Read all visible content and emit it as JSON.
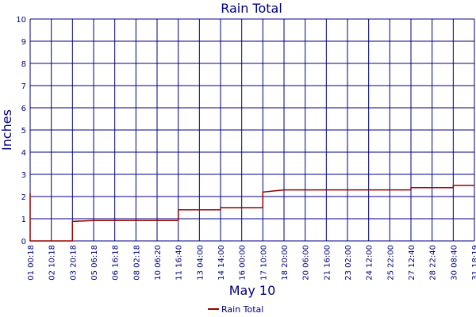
{
  "chart_data": {
    "type": "line",
    "title": "Rain Total",
    "xlabel": "May 10",
    "ylabel": "Inches",
    "ylim": [
      0,
      10
    ],
    "y_ticks": [
      "0",
      "1",
      "2",
      "3",
      "4",
      "5",
      "6",
      "7",
      "8",
      "9",
      "10"
    ],
    "x_ticks": [
      "01 00:18",
      "02 10:18",
      "03 20:18",
      "05 06:18",
      "06 16:18",
      "08 02:18",
      "10 06:20",
      "11 16:40",
      "13 04:00",
      "14 14:00",
      "16 00:00",
      "17 10:00",
      "18 20:00",
      "20 06:00",
      "21 16:00",
      "23 02:00",
      "24 12:00",
      "25 22:00",
      "27 12:40",
      "28 22:40",
      "30 08:40",
      "31 18:19"
    ],
    "grid": true,
    "legend": "bottom",
    "colors": {
      "series": "#990000",
      "grid": "#000080",
      "text": "#000080"
    },
    "series": [
      {
        "name": "Rain Total",
        "points": [
          [
            "01 00:18",
            2.15
          ],
          [
            "01 00:18",
            0.0
          ],
          [
            "02 10:18",
            0.0
          ],
          [
            "03 20:18",
            0.0
          ],
          [
            "03 20:18",
            0.8
          ],
          [
            "03 20:18",
            0.88
          ],
          [
            "05 06:18",
            0.92
          ],
          [
            "10 06:20",
            0.92
          ],
          [
            "11 16:40",
            0.92
          ],
          [
            "11 16:40",
            1.1
          ],
          [
            "11 16:40",
            1.4
          ],
          [
            "14 14:00",
            1.4
          ],
          [
            "14 14:00",
            1.5
          ],
          [
            "17 10:00",
            1.5
          ],
          [
            "17 10:00",
            1.7
          ],
          [
            "17 10:00",
            2.2
          ],
          [
            "18 20:00",
            2.3
          ],
          [
            "27 12:40",
            2.3
          ],
          [
            "27 12:40",
            2.4
          ],
          [
            "30 08:40",
            2.4
          ],
          [
            "30 08:40",
            2.5
          ],
          [
            "31 18:19",
            2.5
          ]
        ]
      }
    ]
  }
}
